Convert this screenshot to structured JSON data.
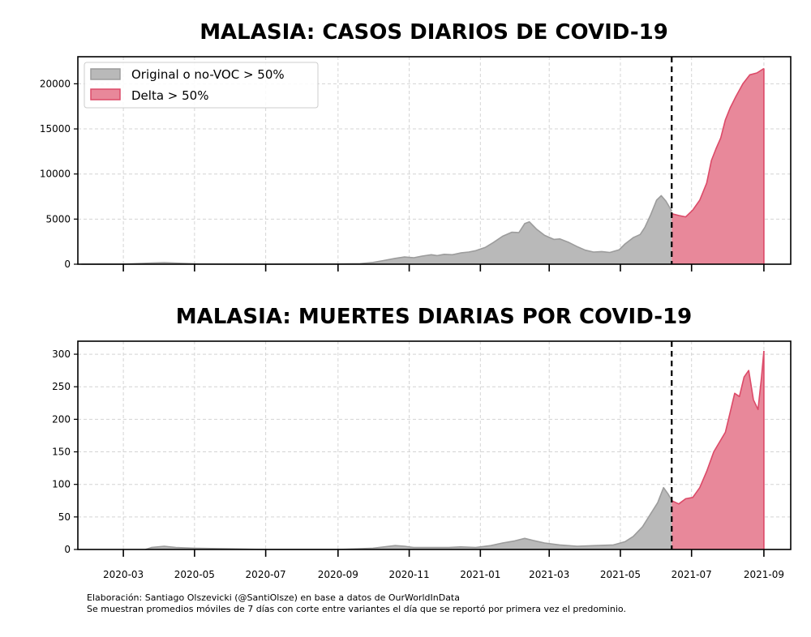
{
  "chart_data": [
    {
      "type": "area",
      "title": "MALASIA: CASOS DIARIOS DE COVID-19",
      "ylim": [
        0,
        23000
      ],
      "yticks": [
        0,
        5000,
        10000,
        15000,
        20000
      ],
      "ytick_labels": [
        "0",
        "5000",
        "10000",
        "15000",
        "20000"
      ],
      "x_start": "2020-01-22",
      "x_end": "2021-09-24",
      "legend_position": "top-left",
      "legend": [
        {
          "label": "Original o no-VOC > 50%",
          "fill": "#b9b9b9",
          "edge": "#9c9c9c"
        },
        {
          "label": "Delta > 50%",
          "fill": "#e8889a",
          "edge": "#dc4a68"
        }
      ],
      "cutoff_date": "2021-06-14",
      "series": [
        {
          "name": "Original o no-VOC > 50%",
          "points": [
            [
              "2020-01-25",
              0
            ],
            [
              "2020-03-01",
              10
            ],
            [
              "2020-03-25",
              130
            ],
            [
              "2020-04-05",
              180
            ],
            [
              "2020-04-20",
              100
            ],
            [
              "2020-05-05",
              30
            ],
            [
              "2020-06-01",
              20
            ],
            [
              "2020-07-01",
              10
            ],
            [
              "2020-08-01",
              15
            ],
            [
              "2020-09-01",
              30
            ],
            [
              "2020-09-20",
              60
            ],
            [
              "2020-10-01",
              200
            ],
            [
              "2020-10-10",
              400
            ],
            [
              "2020-10-20",
              650
            ],
            [
              "2020-10-28",
              800
            ],
            [
              "2020-11-05",
              720
            ],
            [
              "2020-11-12",
              900
            ],
            [
              "2020-11-20",
              1050
            ],
            [
              "2020-11-25",
              950
            ],
            [
              "2020-12-01",
              1100
            ],
            [
              "2020-12-08",
              1050
            ],
            [
              "2020-12-15",
              1250
            ],
            [
              "2020-12-22",
              1350
            ],
            [
              "2020-12-28",
              1500
            ],
            [
              "2021-01-05",
              1850
            ],
            [
              "2021-01-12",
              2400
            ],
            [
              "2021-01-20",
              3100
            ],
            [
              "2021-01-28",
              3550
            ],
            [
              "2021-02-03",
              3500
            ],
            [
              "2021-02-08",
              4500
            ],
            [
              "2021-02-12",
              4700
            ],
            [
              "2021-02-18",
              3900
            ],
            [
              "2021-02-25",
              3200
            ],
            [
              "2021-03-05",
              2750
            ],
            [
              "2021-03-10",
              2800
            ],
            [
              "2021-03-18",
              2400
            ],
            [
              "2021-03-25",
              1950
            ],
            [
              "2021-04-01",
              1550
            ],
            [
              "2021-04-08",
              1350
            ],
            [
              "2021-04-15",
              1400
            ],
            [
              "2021-04-22",
              1300
            ],
            [
              "2021-04-30",
              1600
            ],
            [
              "2021-05-05",
              2250
            ],
            [
              "2021-05-12",
              2950
            ],
            [
              "2021-05-18",
              3300
            ],
            [
              "2021-05-22",
              4100
            ],
            [
              "2021-05-27",
              5500
            ],
            [
              "2021-06-01",
              7100
            ],
            [
              "2021-06-05",
              7600
            ],
            [
              "2021-06-09",
              7000
            ],
            [
              "2021-06-14",
              5900
            ]
          ]
        },
        {
          "name": "Delta > 50%",
          "points": [
            [
              "2021-06-14",
              5600
            ],
            [
              "2021-06-20",
              5400
            ],
            [
              "2021-06-26",
              5250
            ],
            [
              "2021-07-02",
              6000
            ],
            [
              "2021-07-08",
              7100
            ],
            [
              "2021-07-14",
              9000
            ],
            [
              "2021-07-18",
              11500
            ],
            [
              "2021-07-22",
              12800
            ],
            [
              "2021-07-26",
              14000
            ],
            [
              "2021-07-30",
              16000
            ],
            [
              "2021-08-03",
              17300
            ],
            [
              "2021-08-08",
              18600
            ],
            [
              "2021-08-14",
              20000
            ],
            [
              "2021-08-20",
              21000
            ],
            [
              "2021-08-26",
              21200
            ],
            [
              "2021-09-01",
              21700
            ]
          ]
        }
      ]
    },
    {
      "type": "area",
      "title": "MALASIA: MUERTES DIARIAS POR COVID-19",
      "ylim": [
        0,
        320
      ],
      "yticks": [
        0,
        50,
        100,
        150,
        200,
        250,
        300
      ],
      "ytick_labels": [
        "0",
        "50",
        "100",
        "150",
        "200",
        "250",
        "300"
      ],
      "x_start": "2020-01-22",
      "x_end": "2021-09-24",
      "xticks": [
        "2020-03-01",
        "2020-05-01",
        "2020-07-01",
        "2020-09-01",
        "2020-11-01",
        "2021-01-01",
        "2021-03-01",
        "2021-05-01",
        "2021-07-01",
        "2021-09-01"
      ],
      "xtick_labels": [
        "2020-03",
        "2020-05",
        "2020-07",
        "2020-09",
        "2020-11",
        "2021-01",
        "2021-03",
        "2021-05",
        "2021-07",
        "2021-09"
      ],
      "cutoff_date": "2021-06-14",
      "series": [
        {
          "name": "Original o no-VOC > 50%",
          "points": [
            [
              "2020-03-20",
              0
            ],
            [
              "2020-03-25",
              3
            ],
            [
              "2020-04-05",
              5
            ],
            [
              "2020-04-15",
              3
            ],
            [
              "2020-05-01",
              2
            ],
            [
              "2020-06-01",
              1
            ],
            [
              "2020-07-01",
              0
            ],
            [
              "2020-09-01",
              0
            ],
            [
              "2020-10-01",
              2
            ],
            [
              "2020-10-20",
              6
            ],
            [
              "2020-10-28",
              5
            ],
            [
              "2020-11-05",
              3
            ],
            [
              "2020-11-20",
              3
            ],
            [
              "2020-12-05",
              3
            ],
            [
              "2020-12-15",
              4
            ],
            [
              "2020-12-28",
              3
            ],
            [
              "2021-01-10",
              6
            ],
            [
              "2021-01-20",
              10
            ],
            [
              "2021-01-30",
              13
            ],
            [
              "2021-02-08",
              17
            ],
            [
              "2021-02-15",
              14
            ],
            [
              "2021-02-25",
              10
            ],
            [
              "2021-03-10",
              7
            ],
            [
              "2021-03-25",
              5
            ],
            [
              "2021-04-10",
              6
            ],
            [
              "2021-04-25",
              7
            ],
            [
              "2021-05-05",
              12
            ],
            [
              "2021-05-12",
              20
            ],
            [
              "2021-05-20",
              35
            ],
            [
              "2021-05-27",
              55
            ],
            [
              "2021-06-02",
              72
            ],
            [
              "2021-06-07",
              95
            ],
            [
              "2021-06-11",
              85
            ],
            [
              "2021-06-14",
              75
            ]
          ]
        },
        {
          "name": "Delta > 50%",
          "points": [
            [
              "2021-06-14",
              75
            ],
            [
              "2021-06-20",
              70
            ],
            [
              "2021-06-26",
              78
            ],
            [
              "2021-07-02",
              80
            ],
            [
              "2021-07-08",
              95
            ],
            [
              "2021-07-14",
              120
            ],
            [
              "2021-07-20",
              150
            ],
            [
              "2021-07-25",
              165
            ],
            [
              "2021-07-30",
              180
            ],
            [
              "2021-08-03",
              210
            ],
            [
              "2021-08-07",
              240
            ],
            [
              "2021-08-11",
              235
            ],
            [
              "2021-08-15",
              265
            ],
            [
              "2021-08-19",
              275
            ],
            [
              "2021-08-23",
              230
            ],
            [
              "2021-08-27",
              215
            ],
            [
              "2021-08-30",
              265
            ],
            [
              "2021-09-01",
              305
            ]
          ]
        }
      ]
    }
  ],
  "credits": {
    "line1": "Elaboración: Santiago Olszevicki (@SantiOlsze) en base a datos de OurWorldInData",
    "line2": "Se muestran promedios móviles de 7 días con corte entre variantes el día que se reportó por primera vez el predominio."
  }
}
